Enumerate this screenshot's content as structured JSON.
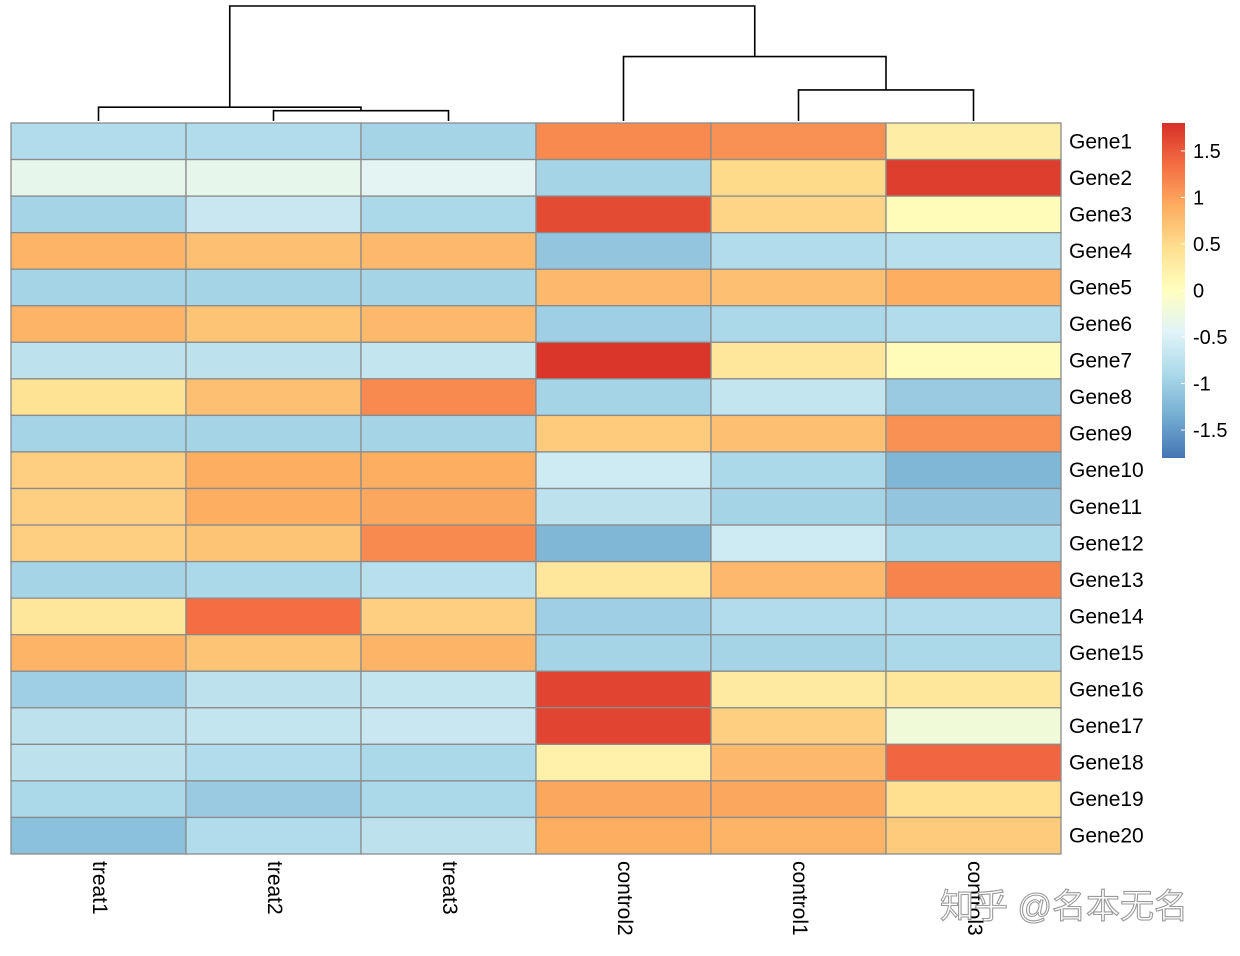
{
  "chart_data": {
    "type": "heatmap",
    "rows": [
      "Gene1",
      "Gene2",
      "Gene3",
      "Gene4",
      "Gene5",
      "Gene6",
      "Gene7",
      "Gene8",
      "Gene9",
      "Gene10",
      "Gene11",
      "Gene12",
      "Gene13",
      "Gene14",
      "Gene15",
      "Gene16",
      "Gene17",
      "Gene18",
      "Gene19",
      "Gene20"
    ],
    "columns": [
      "treat1",
      "treat2",
      "treat3",
      "control2",
      "control1",
      "control3"
    ],
    "values": [
      [
        -0.85,
        -0.85,
        -0.95,
        1.15,
        1.1,
        0.25
      ],
      [
        -0.35,
        -0.35,
        -0.4,
        -0.95,
        0.5,
        1.7
      ],
      [
        -0.95,
        -0.65,
        -0.9,
        1.6,
        0.55,
        0.05
      ],
      [
        0.85,
        0.75,
        0.8,
        -1.1,
        -0.85,
        -0.8
      ],
      [
        -0.95,
        -0.95,
        -0.95,
        0.8,
        0.75,
        0.9
      ],
      [
        0.85,
        0.7,
        0.8,
        -1.0,
        -0.9,
        -0.85
      ],
      [
        -0.75,
        -0.75,
        -0.7,
        1.75,
        0.35,
        0.05
      ],
      [
        0.4,
        0.75,
        1.15,
        -0.95,
        -0.7,
        -1.05
      ],
      [
        -0.95,
        -0.95,
        -0.95,
        0.65,
        0.75,
        1.1
      ],
      [
        0.6,
        0.9,
        0.9,
        -0.6,
        -0.9,
        -1.25
      ],
      [
        0.6,
        0.9,
        0.95,
        -0.75,
        -0.95,
        -1.1
      ],
      [
        0.6,
        0.7,
        1.15,
        -1.25,
        -0.6,
        -0.9
      ],
      [
        -0.95,
        -0.9,
        -0.8,
        0.35,
        0.8,
        1.2
      ],
      [
        0.35,
        1.35,
        0.6,
        -1.0,
        -0.85,
        -0.85
      ],
      [
        0.85,
        0.7,
        0.85,
        -0.95,
        -0.95,
        -0.9
      ],
      [
        -1.0,
        -0.75,
        -0.7,
        1.65,
        0.3,
        0.35
      ],
      [
        -0.75,
        -0.7,
        -0.65,
        1.65,
        0.6,
        -0.2
      ],
      [
        -0.75,
        -0.85,
        -0.9,
        0.2,
        0.8,
        1.4
      ],
      [
        -0.9,
        -1.05,
        -0.9,
        0.95,
        0.95,
        0.45
      ],
      [
        -1.15,
        -0.85,
        -0.75,
        0.9,
        0.85,
        0.65
      ]
    ],
    "colorbar": {
      "ticks": [
        1.5,
        1,
        0.5,
        0,
        -0.5,
        -1,
        -1.5
      ],
      "tick_labels": [
        "1.5",
        "1",
        "0.5",
        "0",
        "-0.5",
        "-1",
        "-1.5"
      ],
      "range": [
        -1.8,
        1.8
      ],
      "colors": [
        "#4575B4",
        "#74ADD1",
        "#ABD9E9",
        "#E0F3F8",
        "#FFFFBF",
        "#FEE090",
        "#FDAE61",
        "#F46D43",
        "#D73027"
      ]
    },
    "column_dendrogram": {
      "order": [
        "treat1",
        "treat2",
        "treat3",
        "control2",
        "control1",
        "control3"
      ],
      "merges": [
        {
          "id": "m1",
          "left": "treat2",
          "right": "treat3",
          "height": 0.09
        },
        {
          "id": "m2",
          "left": "treat1",
          "right": "m1",
          "height": 0.12
        },
        {
          "id": "m3",
          "left": "control1",
          "right": "control3",
          "height": 0.27
        },
        {
          "id": "m4",
          "left": "control2",
          "right": "m3",
          "height": 0.56
        },
        {
          "id": "m5",
          "left": "m2",
          "right": "m4",
          "height": 1.0
        }
      ]
    },
    "cell_border_color": "#8C8C8C"
  },
  "watermark": {
    "text": "知乎 @名本无名"
  }
}
